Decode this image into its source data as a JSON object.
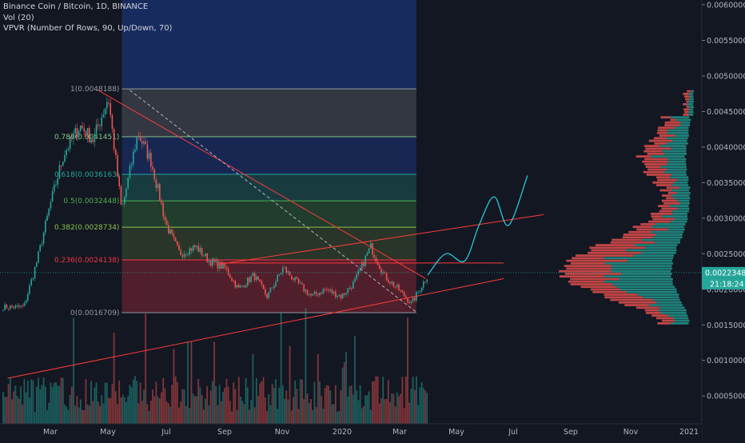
{
  "header": {
    "symbol": "Binance Coin / Bitcoin, 1D, BINANCE",
    "volume": "Vol (20)",
    "vpvr": "VPVR (Number Of Rows, 90, Up/Down, 70)"
  },
  "price_axis": {
    "ticks": [
      "0.0060000",
      "0.0055000",
      "0.0050000",
      "0.0045000",
      "0.0040000",
      "0.0035000",
      "0.0030000",
      "0.0025000",
      "0.0020000",
      "0.0015000",
      "0.0010000",
      "0.0005000"
    ],
    "current_price": "0.0022348",
    "countdown": "21:18:24"
  },
  "time_axis": {
    "labels": [
      "Mar",
      "May",
      "Jul",
      "Sep",
      "Nov",
      "2020",
      "Mar",
      "May",
      "Jul",
      "Sep",
      "Nov",
      "2021"
    ]
  },
  "fib_levels": [
    {
      "label": "1(0.0048188)",
      "color": "#9598a1"
    },
    {
      "label": "0.786(0.0041451)",
      "color": "#81c784"
    },
    {
      "label": "0.618(0.0036163)",
      "color": "#26a69a"
    },
    {
      "label": "0.5(0.0032448)",
      "color": "#4caf50"
    },
    {
      "label": "0.382(0.0028734)",
      "color": "#8bc34a"
    },
    {
      "label": "0.236(0.0024138)",
      "color": "#f23645"
    },
    {
      "label": "0(0.0016709)",
      "color": "#9598a1"
    }
  ],
  "colors": {
    "background": "#131722",
    "up": "#26a69a",
    "down": "#ef5350",
    "trendline": "#ff3b3b",
    "projection": "#26c6da"
  },
  "chart_data": {
    "type": "candlestick",
    "title": "Binance Coin / Bitcoin, 1D, BINANCE",
    "yrange": [
      0.0003,
      0.006
    ],
    "close_path": {
      "x": [
        "2019-02-01",
        "2019-02-15",
        "2019-03-01",
        "2019-03-15",
        "2019-04-01",
        "2019-04-15",
        "2019-05-01",
        "2019-05-15",
        "2019-06-01",
        "2019-06-15",
        "2019-07-01",
        "2019-07-15",
        "2019-08-01",
        "2019-08-15",
        "2019-09-01",
        "2019-09-15",
        "2019-10-01",
        "2019-10-15",
        "2019-11-01",
        "2019-11-15",
        "2019-12-01",
        "2019-12-15",
        "2020-01-01",
        "2020-01-15",
        "2020-02-01",
        "2020-02-15",
        "2020-03-01",
        "2020-03-15",
        "2020-04-01"
      ],
      "y": [
        0.00175,
        0.0024,
        0.0032,
        0.0039,
        0.0043,
        0.0041,
        0.0047,
        0.0031,
        0.0042,
        0.0038,
        0.0029,
        0.0025,
        0.0026,
        0.0024,
        0.0023,
        0.002,
        0.0022,
        0.0019,
        0.0023,
        0.0021,
        0.0019,
        0.002,
        0.0019,
        0.0021,
        0.0026,
        0.0022,
        0.002,
        0.0018,
        0.0022
      ]
    },
    "fibonacci": [
      {
        "ratio": 1,
        "price": 0.0048188
      },
      {
        "ratio": 0.786,
        "price": 0.0041451
      },
      {
        "ratio": 0.618,
        "price": 0.0036163
      },
      {
        "ratio": 0.5,
        "price": 0.0032448
      },
      {
        "ratio": 0.382,
        "price": 0.0028734
      },
      {
        "ratio": 0.236,
        "price": 0.0024138
      },
      {
        "ratio": 0,
        "price": 0.0016709
      }
    ],
    "fib_dates": [
      "2019-04-20",
      "2020-03-20"
    ],
    "projection": {
      "x": [
        "2020-04-01",
        "2020-04-20",
        "2020-05-10",
        "2020-05-25",
        "2020-06-10",
        "2020-06-25",
        "2020-07-15"
      ],
      "y": [
        0.0022,
        0.0025,
        0.0024,
        0.0029,
        0.0033,
        0.0029,
        0.0036
      ]
    },
    "trendlines": [
      {
        "from": [
          "2019-01-15",
          0.00075
        ],
        "to": [
          "2020-06-20",
          0.00215
        ]
      },
      {
        "from": [
          "2019-08-25",
          0.00237
        ],
        "to": [
          "2020-06-20",
          0.00237
        ]
      },
      {
        "from": [
          "2019-08-25",
          0.00235
        ],
        "to": [
          "2020-08-01",
          0.00305
        ]
      },
      {
        "from": [
          "2019-04-20",
          0.0048
        ],
        "to": [
          "2020-03-30",
          0.00215
        ]
      }
    ],
    "current_price": 0.0022348
  }
}
